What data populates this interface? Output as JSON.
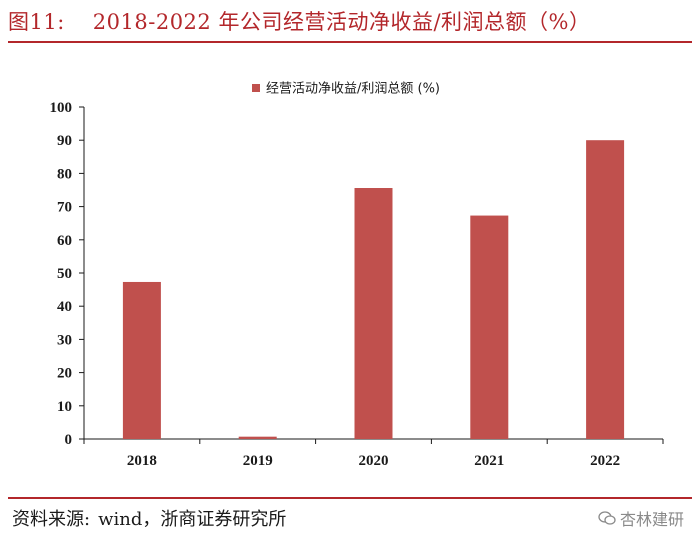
{
  "figure": {
    "label": "图11:",
    "title": "2018-2022 年公司经营活动净收益/利润总额（%）"
  },
  "source": {
    "label": "资料来源:",
    "text": "wind，浙商证券研究所"
  },
  "watermark": {
    "text": "杏林建研",
    "icon": "wechat-icon"
  },
  "colors": {
    "accent": "#b3272b",
    "bar": "#c0504d"
  },
  "chart_data": {
    "type": "bar",
    "categories": [
      "2018",
      "2019",
      "2020",
      "2021",
      "2022"
    ],
    "series": [
      {
        "name": "经营活动净收益/利润总额 (%)",
        "values": [
          47.3,
          0.7,
          75.6,
          67.3,
          90.0
        ]
      }
    ],
    "ylim": [
      0,
      100
    ],
    "yticks": [
      0,
      10,
      20,
      30,
      40,
      50,
      60,
      70,
      80,
      90,
      100
    ],
    "grid": false,
    "legend": "top-center"
  }
}
